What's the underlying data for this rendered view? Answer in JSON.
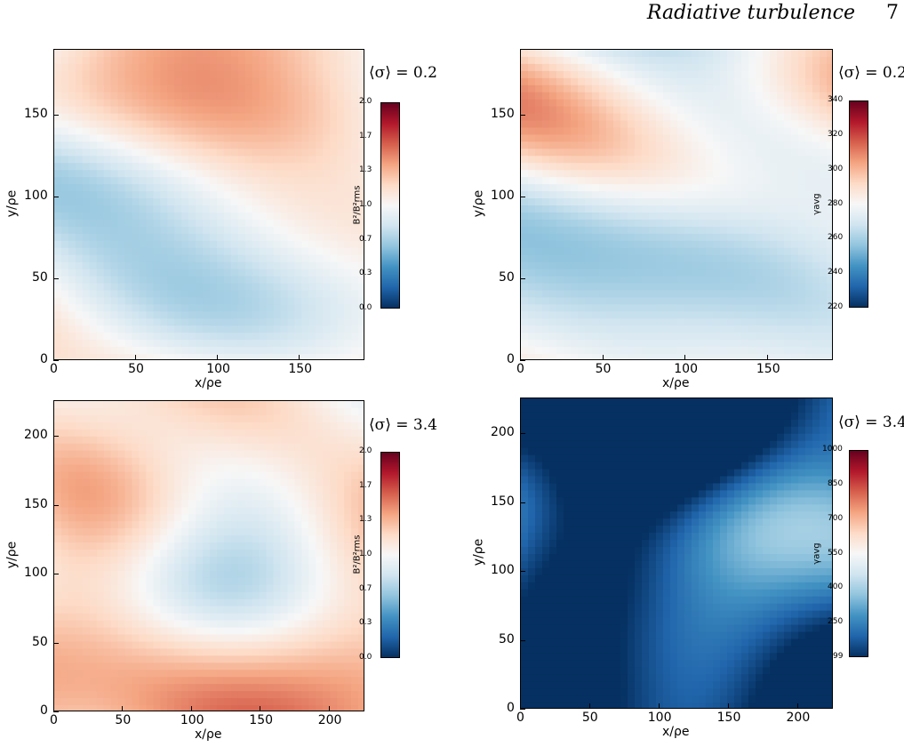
{
  "header": {
    "running_title": "Radiative turbulence",
    "page_number": "7"
  },
  "colors": {
    "diverging": [
      "#053061",
      "#2166ac",
      "#4393c3",
      "#92c5de",
      "#d1e5f0",
      "#f7f7f7",
      "#fddbc7",
      "#f4a582",
      "#d6604d",
      "#b2182b",
      "#67001f"
    ]
  },
  "panels": [
    {
      "sigma_label": "⟨σ⟩ = 0.2",
      "xlabel": "x/ρe",
      "ylabel": "y/ρe",
      "xticks": [
        "0",
        "50",
        "100",
        "150"
      ],
      "yticks": [
        "0",
        "50",
        "100",
        "150"
      ],
      "xmax": 190,
      "ymax": 190,
      "colorbar": {
        "label": "B²/B²rms",
        "ticks": [
          "0.0",
          "0.3",
          "0.7",
          "1.0",
          "1.3",
          "1.7",
          "2.0"
        ]
      },
      "bias": 0.0,
      "seed": 3
    },
    {
      "sigma_label": "⟨σ⟩ = 0.2",
      "xlabel": "x/ρe",
      "ylabel": "y/ρe",
      "xticks": [
        "0",
        "50",
        "100",
        "150"
      ],
      "yticks": [
        "0",
        "50",
        "100",
        "150"
      ],
      "xmax": 190,
      "ymax": 190,
      "colorbar": {
        "label": "γavg",
        "ticks": [
          "220",
          "240",
          "260",
          "280",
          "300",
          "320",
          "340"
        ]
      },
      "bias": 0.05,
      "seed": 11
    },
    {
      "sigma_label": "⟨σ⟩ = 3.4",
      "xlabel": "x/ρe",
      "ylabel": "y/ρe",
      "xticks": [
        "0",
        "50",
        "100",
        "150",
        "200"
      ],
      "yticks": [
        "0",
        "50",
        "100",
        "150",
        "200"
      ],
      "xmax": 226,
      "ymax": 226,
      "colorbar": {
        "label": "B²/B²rms",
        "ticks": [
          "0.0",
          "0.3",
          "0.7",
          "1.0",
          "1.3",
          "1.7",
          "2.0"
        ]
      },
      "bias": 0.1,
      "seed": 7
    },
    {
      "sigma_label": "⟨σ⟩ = 3.4",
      "xlabel": "x/ρe",
      "ylabel": "y/ρe",
      "xticks": [
        "0",
        "50",
        "100",
        "150",
        "200"
      ],
      "yticks": [
        "0",
        "50",
        "100",
        "150",
        "200"
      ],
      "xmax": 226,
      "ymax": 226,
      "colorbar": {
        "label": "γavg",
        "ticks": [
          "99",
          "250",
          "400",
          "550",
          "700",
          "850",
          "1000"
        ]
      },
      "bias": -0.45,
      "seed": 19
    }
  ]
}
